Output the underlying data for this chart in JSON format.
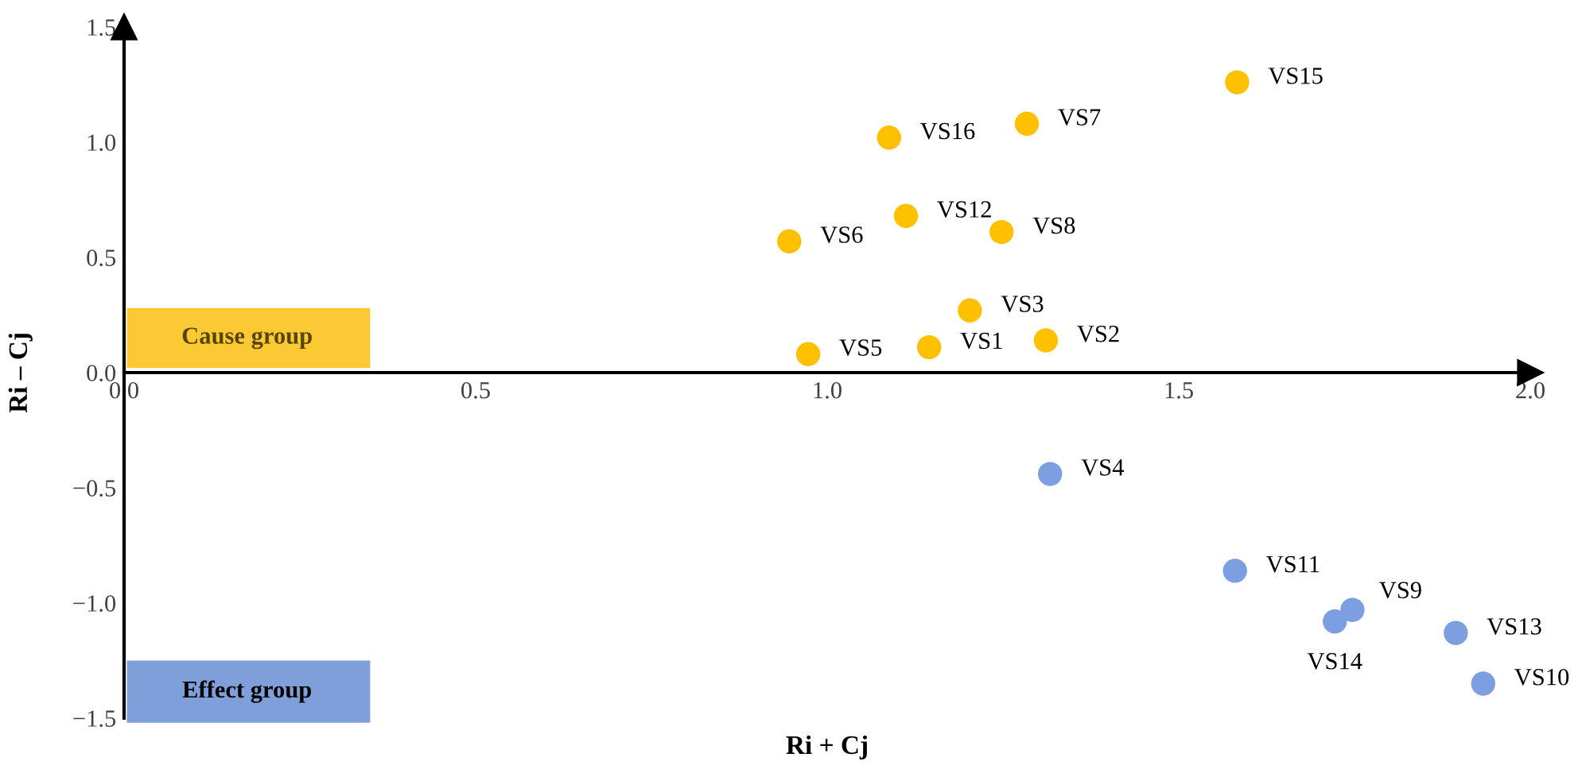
{
  "chart_data": {
    "type": "scatter",
    "xlabel": "Ri + Cj",
    "ylabel": "Ri – Cj",
    "xlim": [
      0,
      2.0
    ],
    "ylim": [
      -1.5,
      1.5
    ],
    "xticks": [
      {
        "value": 0,
        "label": "0.0"
      },
      0.5,
      {
        "value": 1,
        "label": "1.0"
      },
      1.5,
      {
        "value": 2,
        "label": "2.0"
      }
    ],
    "yticks": [
      {
        "value": -1.5,
        "label": "−1.5"
      },
      {
        "value": -1,
        "label": "−1.0"
      },
      {
        "value": -0.5,
        "label": "−0.5"
      },
      {
        "value": 0,
        "label": "0.0"
      },
      0.5,
      {
        "value": 1,
        "label": "1.0"
      },
      1.5
    ],
    "marker": "circle",
    "grid": false,
    "legend": false,
    "annotations": [
      "Cause group",
      "Effect group"
    ],
    "series": [
      {
        "color": "#ffc000",
        "x": [
          1.583,
          1.284,
          1.088,
          1.112,
          1.248,
          0.946,
          1.203,
          1.311,
          1.145,
          0.973
        ],
        "values": [
          1.26,
          1.08,
          1.02,
          0.68,
          0.61,
          0.57,
          0.27,
          0.14,
          0.11,
          0.08
        ],
        "value_labels": [
          "VS15",
          "VS7",
          "VS16",
          "VS12",
          "VS8",
          "VS6",
          "VS3",
          "VS2",
          "VS1",
          "VS5"
        ]
      },
      {
        "color": "#7b9fe0",
        "x": [
          1.317,
          1.58,
          1.747,
          1.722,
          1.894,
          1.933
        ],
        "values": [
          -0.44,
          -0.86,
          -1.03,
          -1.08,
          -1.13,
          -1.35
        ],
        "value_labels": [
          "VS4",
          "VS11",
          "VS9",
          "VS14",
          "VS13",
          "VS10"
        ]
      }
    ]
  }
}
